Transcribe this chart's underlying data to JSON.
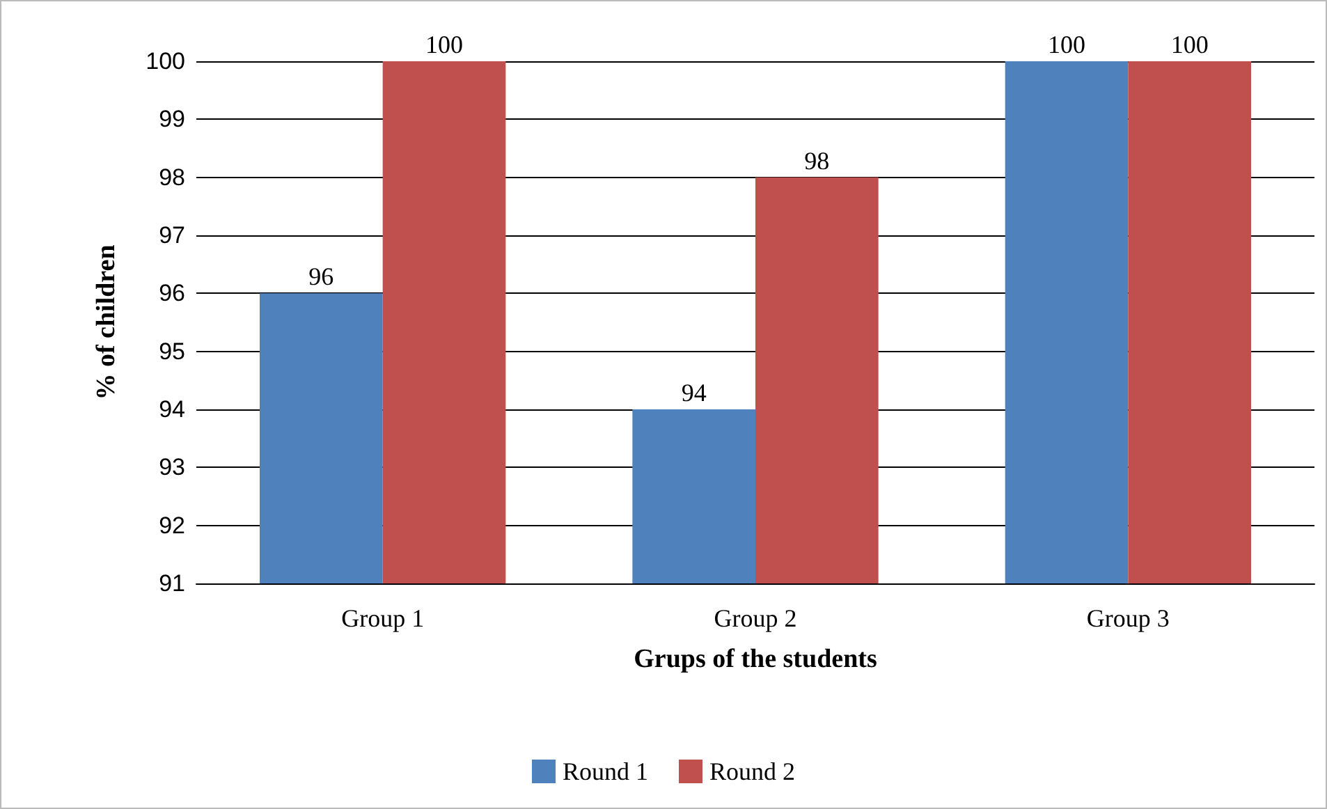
{
  "chart_data": {
    "type": "bar",
    "xlabel": "Grups of the students",
    "ylabel": "% of children",
    "categories": [
      "Group 1",
      "Group 2",
      "Group 3"
    ],
    "series": [
      {
        "name": "Round 1",
        "color": "#4f81bd",
        "values": [
          96,
          94,
          100
        ]
      },
      {
        "name": "Round 2",
        "color": "#c0504d",
        "values": [
          100,
          98,
          100
        ]
      }
    ],
    "ylim": [
      91,
      100
    ],
    "yticks": [
      91,
      92,
      93,
      94,
      95,
      96,
      97,
      98,
      99,
      100
    ],
    "grid": "y",
    "legend": "bottom",
    "data_labels": true
  }
}
